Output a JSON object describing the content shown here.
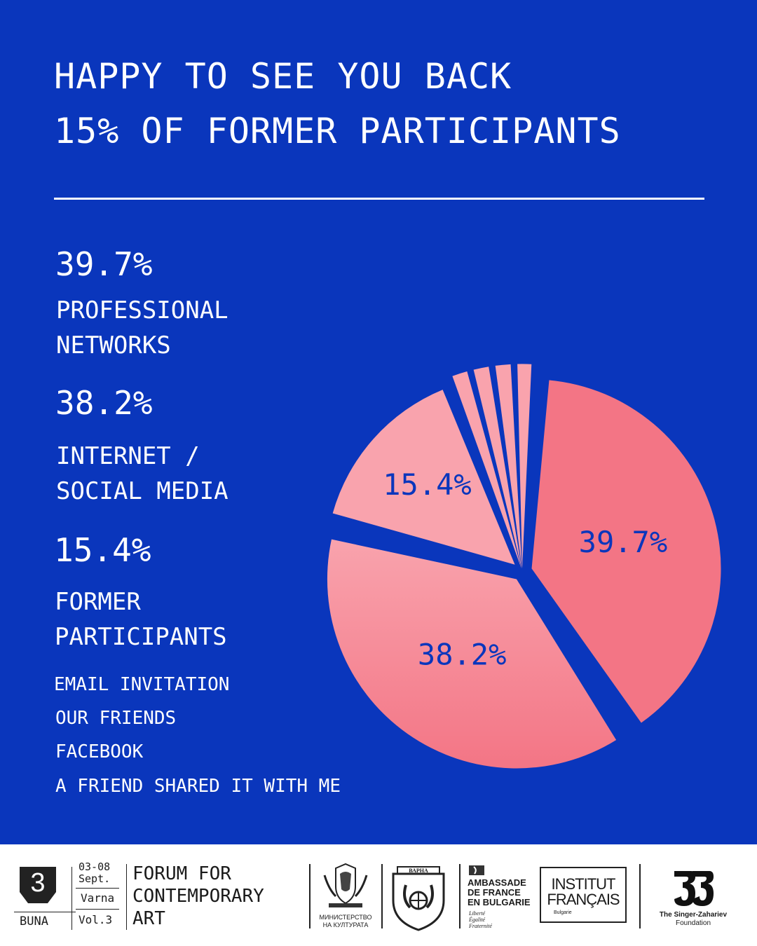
{
  "header": {
    "title_line1": "HAPPY TO SEE YOU BACK",
    "title_line2": "15% OF FORMER PARTICIPANTS"
  },
  "stats": [
    {
      "value": "39.7%",
      "label_line1": "PROFESSIONAL",
      "label_line2": "NETWORKS"
    },
    {
      "value": "38.2%",
      "label_line1": "INTERNET /",
      "label_line2": "SOCIAL MEDIA"
    },
    {
      "value": "15.4%",
      "label_line1": "FORMER",
      "label_line2": "PARTICIPANTS"
    }
  ],
  "minor_sources": [
    "EMAIL INVITATION",
    "OUR FRIENDS",
    "FACEBOOK",
    "A FRIEND SHARED IT WITH ME"
  ],
  "chart_data": {
    "type": "pie",
    "slices": [
      {
        "label": "PROFESSIONAL NETWORKS",
        "value": 39.7,
        "display": "39.7%"
      },
      {
        "label": "INTERNET / SOCIAL MEDIA",
        "value": 38.2,
        "display": "38.2%"
      },
      {
        "label": "FORMER PARTICIPANTS",
        "value": 15.4,
        "display": "15.4%"
      },
      {
        "label": "EMAIL INVITATION",
        "value": 1.7
      },
      {
        "label": "OUR FRIENDS",
        "value": 1.7
      },
      {
        "label": "FACEBOOK",
        "value": 1.7
      },
      {
        "label": "A FRIEND SHARED IT WITH ME",
        "value": 1.6
      }
    ],
    "colors": {
      "background": "#0a36bc",
      "slice": "#f37585",
      "slice_light": "#f9a3ad",
      "label": "#0a36bc"
    }
  },
  "footer": {
    "logo_number": "3",
    "logo_name": "BUNA",
    "dates": "03-08",
    "month": "Sept.",
    "city": "Varna",
    "volume": "Vol.3",
    "forum_line1": "FORUM FOR",
    "forum_line2": "CONTEMPORARY",
    "forum_line3": "ART",
    "ministry_line1": "МИНИСТЕРСТВО",
    "ministry_line2": "НА КУЛТУРАТА",
    "varna_crest_text": "ВАРНА",
    "ambassade_line1": "AMBASSADE",
    "ambassade_line2": "DE FRANCE",
    "ambassade_line3": "EN BULGARIE",
    "motto_line1": "Liberté",
    "motto_line2": "Égalité",
    "motto_line3": "Fraternité",
    "institut_line1": "INSTITUT",
    "institut_line2": "FRANÇAIS",
    "institut_sub": "Bulgarie",
    "foundation_line1": "The Singer-Zahariev",
    "foundation_line2": "Foundation"
  }
}
